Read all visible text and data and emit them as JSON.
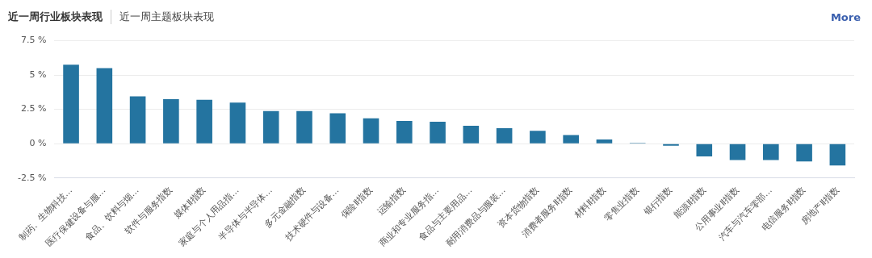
{
  "chart_data": {
    "type": "bar",
    "title": "近一周行业板块表现",
    "subtitle": "近一周主题板块表现",
    "annotations": [
      "More"
    ],
    "categories": [
      "制药、生物科技…",
      "医疗保健设备与服…",
      "食品、饮料与烟…",
      "软件与服务指数",
      "媒体Ⅱ指数",
      "家庭与个人用品指…",
      "半导体与半导体…",
      "多元金融指数",
      "技术硬件与设备…",
      "保险Ⅱ指数",
      "运输指数",
      "商业和专业服务指…",
      "食品与主要用品…",
      "耐用消费品与服装…",
      "资本货物指数",
      "消费者服务Ⅱ指数",
      "材料Ⅱ指数",
      "零售业指数",
      "银行指数",
      "能源Ⅱ指数",
      "公用事业Ⅱ指数",
      "汽车与汽车零部…",
      "电信服务Ⅱ指数",
      "房地产Ⅱ指数"
    ],
    "values": [
      5.75,
      5.5,
      3.45,
      3.25,
      3.2,
      3.0,
      2.37,
      2.37,
      2.22,
      1.85,
      1.65,
      1.6,
      1.3,
      1.13,
      0.93,
      0.62,
      0.31,
      0.05,
      -0.15,
      -0.93,
      -1.2,
      -1.2,
      -1.3,
      -1.6
    ],
    "color": "#2474a0",
    "ylim": [
      -2.5,
      7.5
    ],
    "yticks": [
      {
        "value": -2.5,
        "label": "-2.5 %"
      },
      {
        "value": 0,
        "label": "0 %"
      },
      {
        "value": 2.5,
        "label": "2.5 %"
      },
      {
        "value": 5,
        "label": "5 %"
      },
      {
        "value": 7.5,
        "label": "7.5 %"
      }
    ],
    "grid": "y",
    "legend": false
  }
}
